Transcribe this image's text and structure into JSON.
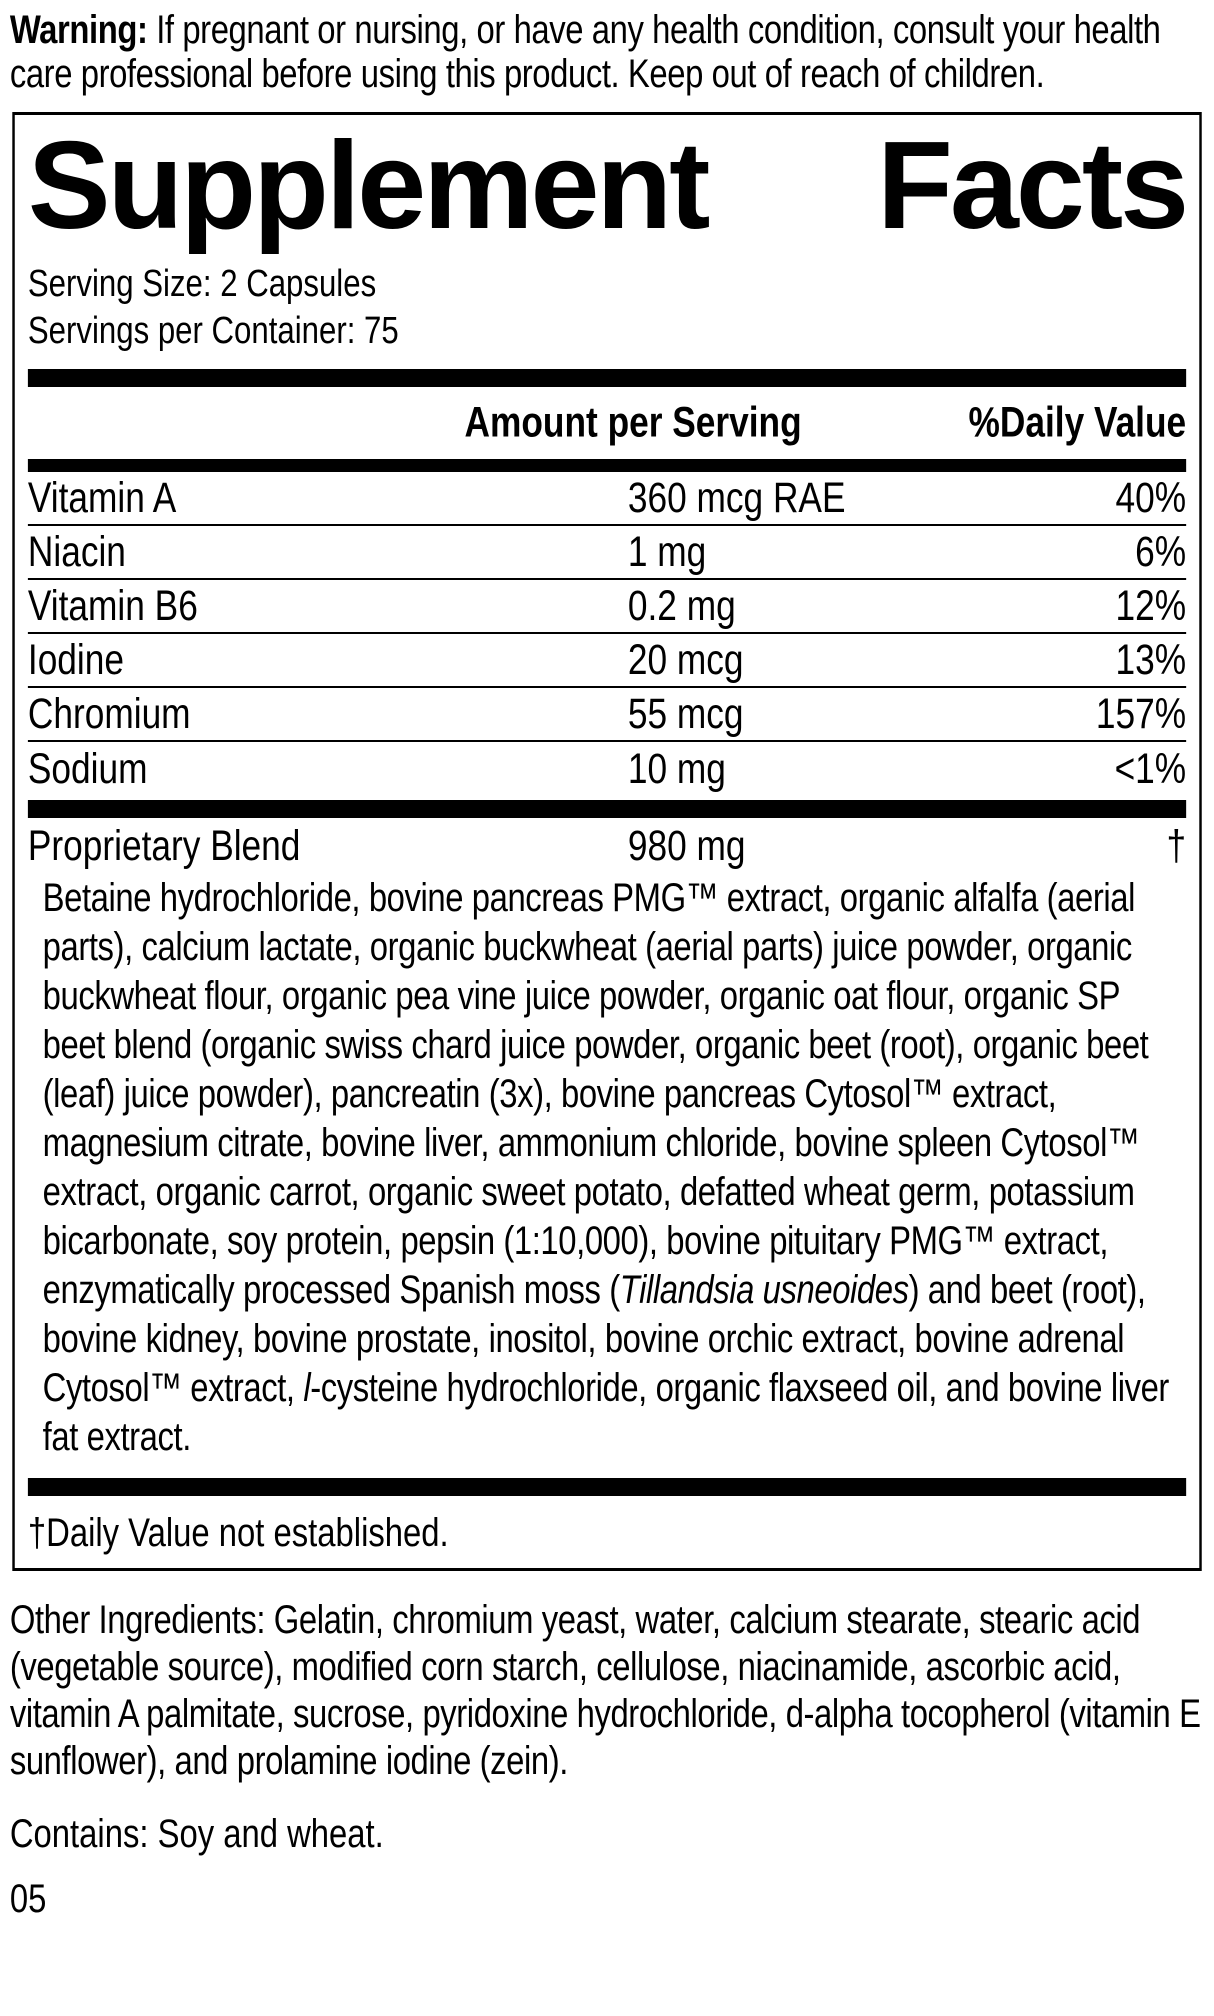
{
  "colors": {
    "text": "#000000",
    "background": "#ffffff",
    "rule": "#000000"
  },
  "warning": {
    "label": "Warning:",
    "text": "If pregnant or nursing, or have any health condition, consult your health care professional before using this product. Keep out of reach of children."
  },
  "panel": {
    "title_left": "Supplement",
    "title_right": "Facts",
    "serving_size": "Serving Size: 2 Capsules",
    "servings_per_container": "Servings per Container: 75",
    "columns": {
      "amount": "Amount per Serving",
      "daily_value": "%Daily Value"
    },
    "nutrients": [
      {
        "name": "Vitamin A",
        "amount": "360 mcg RAE",
        "daily_value": "40%"
      },
      {
        "name": "Niacin",
        "amount": "1 mg",
        "daily_value": "6%"
      },
      {
        "name": "Vitamin B6",
        "amount": "0.2 mg",
        "daily_value": "12%"
      },
      {
        "name": "Iodine",
        "amount": "20 mcg",
        "daily_value": "13%"
      },
      {
        "name": "Chromium",
        "amount": "55 mcg",
        "daily_value": "157%"
      },
      {
        "name": "Sodium",
        "amount": "10 mg",
        "daily_value": "<1%"
      }
    ],
    "proprietary_blend": {
      "name": "Proprietary Blend",
      "amount": "980 mg",
      "daily_value": "†"
    },
    "blend_ingredients_segments": [
      {
        "text": "Betaine hydrochloride, bovine pancreas PMG™ extract, organic alfalfa (aerial parts), calcium lactate, organic buckwheat (aerial parts) juice powder, organic buckwheat flour, organic pea vine juice powder, organic oat flour, organic SP beet blend (organic swiss chard juice powder, organic beet (root), organic beet (leaf) juice powder), pancreatin (3x), bovine pancreas Cytosol™ extract, magnesium citrate, bovine liver, ammonium chloride, bovine spleen Cytosol™ extract, organic carrot, organic sweet potato, defatted wheat germ, potassium bicarbonate, soy protein, pepsin (1:10,000), bovine pituitary PMG™ extract, enzymatically processed Spanish moss (",
        "italic": false
      },
      {
        "text": "Tillandsia usneoides",
        "italic": true
      },
      {
        "text": ") and beet (root), bovine kidney, bovine prostate, inositol, bovine orchic extract, bovine adrenal Cytosol™ extract, ",
        "italic": false
      },
      {
        "text": "l",
        "italic": true
      },
      {
        "text": "-cysteine hydrochloride, organic flaxseed oil, and bovine liver fat extract.",
        "italic": false
      }
    ],
    "footnote": "†Daily Value not established."
  },
  "other_ingredients": "Other Ingredients: Gelatin, chromium yeast, water, calcium stearate, stearic acid (vegetable source), modified corn starch, cellulose, niacinamide, ascorbic acid, vitamin A palmitate, sucrose, pyridoxine hydrochloride, d-alpha tocopherol (vitamin E sunflower), and prolamine iodine (zein).",
  "contains": "Contains: Soy and wheat.",
  "footer_code": "05"
}
